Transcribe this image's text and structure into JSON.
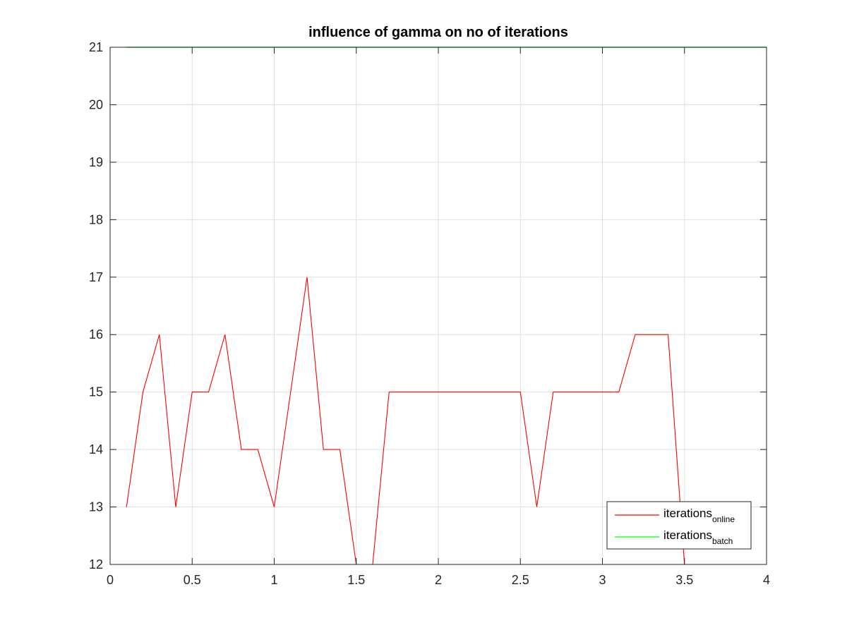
{
  "chart_data": {
    "type": "line",
    "title": "influence of gamma on no of iterations",
    "xlabel": "",
    "ylabel": "",
    "xlim": [
      0,
      4
    ],
    "ylim": [
      12,
      21
    ],
    "grid": true,
    "legend_position": "bottom-right",
    "x_ticks": [
      "0",
      "0.5",
      "1",
      "1.5",
      "2",
      "2.5",
      "3",
      "3.5",
      "4"
    ],
    "y_ticks": [
      "12",
      "13",
      "14",
      "15",
      "16",
      "17",
      "18",
      "19",
      "20",
      "21"
    ],
    "series": [
      {
        "name_main": "iterations",
        "name_sub": "online",
        "color": "#ff0000",
        "x": [
          0.1,
          0.2,
          0.3,
          0.4,
          0.5,
          0.6,
          0.7,
          0.8,
          0.9,
          1.0,
          1.1,
          1.2,
          1.3,
          1.4,
          1.5,
          1.6,
          1.7,
          1.8,
          1.9,
          2.0,
          2.1,
          2.2,
          2.3,
          2.4,
          2.5,
          2.6,
          2.7,
          2.8,
          2.9,
          3.0,
          3.1,
          3.2,
          3.3,
          3.4,
          3.5,
          3.6,
          3.7,
          3.8,
          3.9,
          4.0
        ],
        "values": [
          13,
          15,
          16,
          13,
          15,
          15,
          16,
          14,
          14,
          13,
          15,
          17,
          14,
          14,
          12,
          12,
          15,
          15,
          15,
          15,
          15,
          15,
          15,
          15,
          15,
          13,
          15,
          15,
          15,
          15,
          15,
          16,
          16,
          16,
          12,
          12,
          12,
          12,
          12,
          12
        ]
      },
      {
        "name_main": "iterations",
        "name_sub": "batch",
        "color": "#00ff00",
        "x": [
          0.1,
          0.2,
          0.3,
          0.4,
          0.5,
          0.6,
          0.7,
          0.8,
          0.9,
          1.0,
          1.1,
          1.2,
          1.3,
          1.4,
          1.5,
          1.6,
          1.7,
          1.8,
          1.9,
          2.0,
          2.1,
          2.2,
          2.3,
          2.4,
          2.5,
          2.6,
          2.7,
          2.8,
          2.9,
          3.0,
          3.1,
          3.2,
          3.3,
          3.4,
          3.5,
          3.6,
          3.7,
          3.8,
          3.9,
          4.0
        ],
        "values": [
          21,
          21,
          21,
          21,
          21,
          21,
          21,
          21,
          21,
          21,
          21,
          21,
          21,
          21,
          21,
          21,
          21,
          21,
          21,
          21,
          21,
          21,
          21,
          21,
          21,
          21,
          21,
          21,
          21,
          21,
          21,
          21,
          21,
          21,
          21,
          21,
          21,
          21,
          21,
          21
        ]
      }
    ]
  }
}
